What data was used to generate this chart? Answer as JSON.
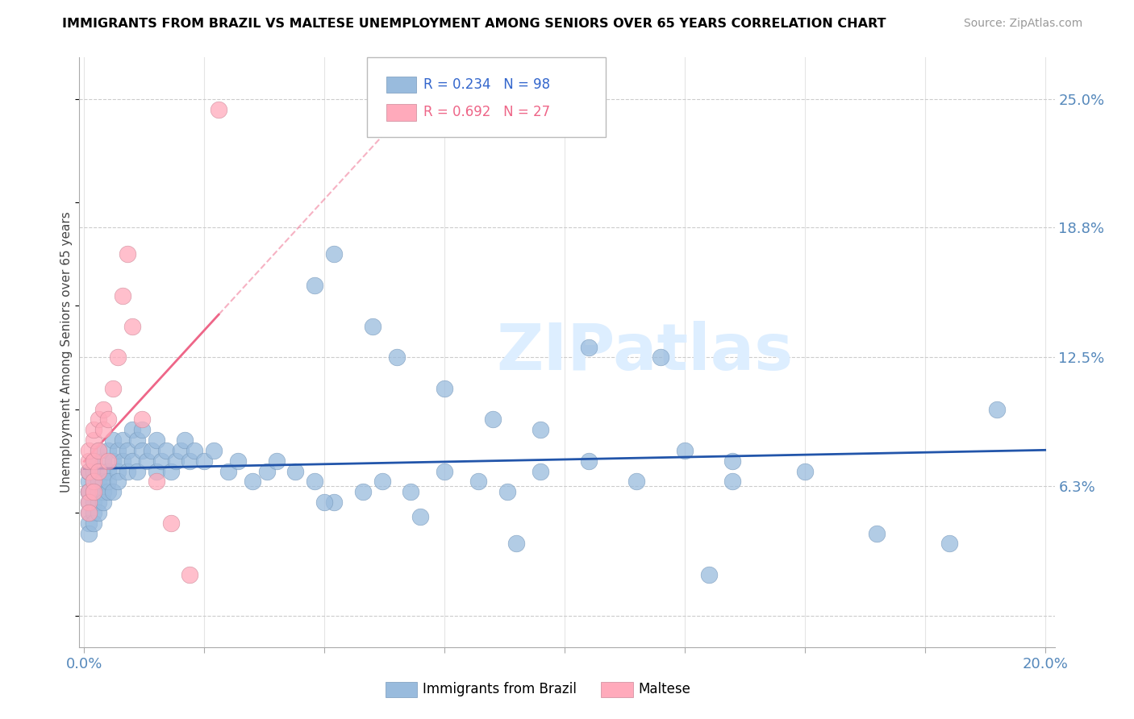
{
  "title": "IMMIGRANTS FROM BRAZIL VS MALTESE UNEMPLOYMENT AMONG SENIORS OVER 65 YEARS CORRELATION CHART",
  "source": "Source: ZipAtlas.com",
  "ylabel": "Unemployment Among Seniors over 65 years",
  "xlim": [
    -0.001,
    0.202
  ],
  "ylim": [
    -0.015,
    0.27
  ],
  "xtick_positions": [
    0.0,
    0.025,
    0.05,
    0.075,
    0.1,
    0.125,
    0.15,
    0.175,
    0.2
  ],
  "xticklabels": [
    "0.0%",
    "",
    "",
    "",
    "",
    "",
    "",
    "",
    "20.0%"
  ],
  "ytick_positions": [
    0.0,
    0.063,
    0.125,
    0.188,
    0.25
  ],
  "ytick_labels": [
    "",
    "6.3%",
    "12.5%",
    "18.8%",
    "25.0%"
  ],
  "blue_color": "#99BBDD",
  "pink_color": "#FFAABB",
  "blue_line_color": "#2255AA",
  "pink_line_color": "#EE6688",
  "watermark": "ZIPatlas",
  "watermark_color": "#DDEEFF",
  "legend_blue_R": "R = 0.234",
  "legend_blue_N": "N = 98",
  "legend_pink_R": "R = 0.692",
  "legend_pink_N": "N = 27",
  "legend_blue_label": "Immigrants from Brazil",
  "legend_pink_label": "Maltese",
  "blue_R": 0.234,
  "blue_N": 98,
  "pink_R": 0.692,
  "pink_N": 27,
  "brazil_x": [
    0.001,
    0.001,
    0.001,
    0.001,
    0.001,
    0.001,
    0.001,
    0.001,
    0.001,
    0.002,
    0.002,
    0.002,
    0.002,
    0.002,
    0.002,
    0.002,
    0.003,
    0.003,
    0.003,
    0.003,
    0.003,
    0.003,
    0.004,
    0.004,
    0.004,
    0.004,
    0.004,
    0.005,
    0.005,
    0.005,
    0.005,
    0.006,
    0.006,
    0.006,
    0.007,
    0.007,
    0.007,
    0.008,
    0.008,
    0.009,
    0.009,
    0.01,
    0.01,
    0.011,
    0.011,
    0.012,
    0.012,
    0.013,
    0.014,
    0.015,
    0.015,
    0.016,
    0.017,
    0.018,
    0.019,
    0.02,
    0.021,
    0.022,
    0.023,
    0.025,
    0.027,
    0.03,
    0.032,
    0.035,
    0.038,
    0.04,
    0.044,
    0.048,
    0.052,
    0.058,
    0.062,
    0.068,
    0.075,
    0.082,
    0.088,
    0.095,
    0.105,
    0.115,
    0.125,
    0.135,
    0.048,
    0.052,
    0.06,
    0.065,
    0.075,
    0.085,
    0.095,
    0.105,
    0.12,
    0.135,
    0.15,
    0.165,
    0.18,
    0.19,
    0.05,
    0.07,
    0.09,
    0.13
  ],
  "brazil_y": [
    0.05,
    0.06,
    0.065,
    0.07,
    0.055,
    0.045,
    0.04,
    0.06,
    0.07,
    0.055,
    0.065,
    0.05,
    0.06,
    0.07,
    0.045,
    0.075,
    0.06,
    0.07,
    0.055,
    0.065,
    0.05,
    0.08,
    0.06,
    0.07,
    0.075,
    0.055,
    0.065,
    0.07,
    0.06,
    0.08,
    0.065,
    0.075,
    0.085,
    0.06,
    0.07,
    0.08,
    0.065,
    0.075,
    0.085,
    0.07,
    0.08,
    0.075,
    0.09,
    0.07,
    0.085,
    0.08,
    0.09,
    0.075,
    0.08,
    0.07,
    0.085,
    0.075,
    0.08,
    0.07,
    0.075,
    0.08,
    0.085,
    0.075,
    0.08,
    0.075,
    0.08,
    0.07,
    0.075,
    0.065,
    0.07,
    0.075,
    0.07,
    0.065,
    0.055,
    0.06,
    0.065,
    0.06,
    0.07,
    0.065,
    0.06,
    0.07,
    0.075,
    0.065,
    0.08,
    0.075,
    0.16,
    0.175,
    0.14,
    0.125,
    0.11,
    0.095,
    0.09,
    0.13,
    0.125,
    0.065,
    0.07,
    0.04,
    0.035,
    0.1,
    0.055,
    0.048,
    0.035,
    0.02
  ],
  "maltese_x": [
    0.001,
    0.001,
    0.001,
    0.001,
    0.001,
    0.001,
    0.002,
    0.002,
    0.002,
    0.002,
    0.002,
    0.003,
    0.003,
    0.003,
    0.004,
    0.004,
    0.005,
    0.005,
    0.006,
    0.007,
    0.008,
    0.009,
    0.01,
    0.012,
    0.015,
    0.018,
    0.022
  ],
  "maltese_y": [
    0.06,
    0.07,
    0.075,
    0.08,
    0.055,
    0.05,
    0.075,
    0.085,
    0.09,
    0.065,
    0.06,
    0.08,
    0.095,
    0.07,
    0.09,
    0.1,
    0.095,
    0.075,
    0.11,
    0.125,
    0.155,
    0.175,
    0.14,
    0.095,
    0.065,
    0.045,
    0.02
  ]
}
